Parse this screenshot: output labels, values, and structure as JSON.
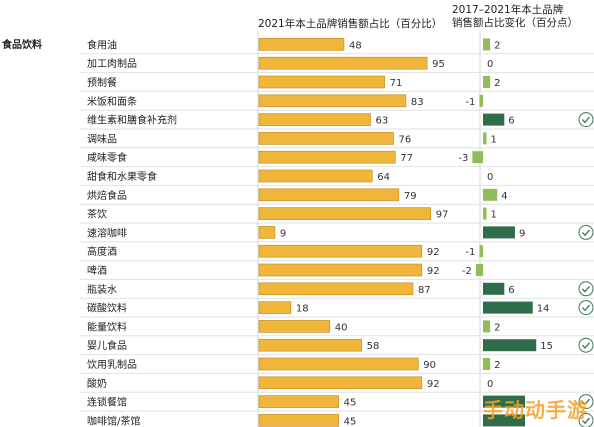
{
  "colors": {
    "bar": "#f0b53b",
    "bar_stroke": "#c48a1f",
    "change_light": "#8fbd5a",
    "change_dark": "#2f6d4a",
    "check": "#3d7a55",
    "grid": "#e2e2e2",
    "divider": "#d6d6d6"
  },
  "watermark": "手动动手游",
  "chart_data": [
    {
      "type": "bar",
      "title": "2021年本土品牌销售额占比（百分比）",
      "group_label": "食品饮料",
      "categories": [
        "食用油",
        "加工肉制品",
        "预制餐",
        "米饭和面条",
        "维生素和膳食补充剂",
        "调味品",
        "咸味零食",
        "甜食和水果零食",
        "烘焙食品",
        "茶饮",
        "速溶咖啡",
        "高度酒",
        "啤酒",
        "瓶装水",
        "碳酸饮料",
        "能量饮料",
        "婴儿食品",
        "饮用乳制品",
        "酸奶",
        "连锁餐馆",
        "咖啡馆/茶馆"
      ],
      "values": [
        48,
        95,
        71,
        83,
        63,
        76,
        77,
        64,
        79,
        97,
        9,
        92,
        92,
        87,
        18,
        40,
        58,
        90,
        92,
        45,
        45
      ],
      "xlim": [
        0,
        100
      ]
    },
    {
      "type": "bar",
      "title": "2017–2021年本土品牌销售额占比变化（百分点）",
      "categories": [
        "食用油",
        "加工肉制品",
        "预制餐",
        "米饭和面条",
        "维生素和膳食补充剂",
        "调味品",
        "咸味零食",
        "甜食和水果零食",
        "烘焙食品",
        "茶饮",
        "速溶咖啡",
        "高度酒",
        "啤酒",
        "瓶装水",
        "碳酸饮料",
        "能量饮料",
        "婴儿食品",
        "饮用乳制品",
        "酸奶",
        "连锁餐馆",
        "咖啡馆/茶馆"
      ],
      "values": [
        2,
        0,
        2,
        -1,
        6,
        1,
        -3,
        0,
        4,
        1,
        9,
        -1,
        -2,
        6,
        14,
        2,
        15,
        2,
        0,
        null,
        null
      ],
      "highlighted": [
        false,
        false,
        false,
        false,
        true,
        false,
        false,
        false,
        false,
        false,
        true,
        false,
        false,
        true,
        true,
        false,
        true,
        false,
        false,
        true,
        true
      ],
      "xlim": [
        -3,
        15
      ]
    }
  ]
}
